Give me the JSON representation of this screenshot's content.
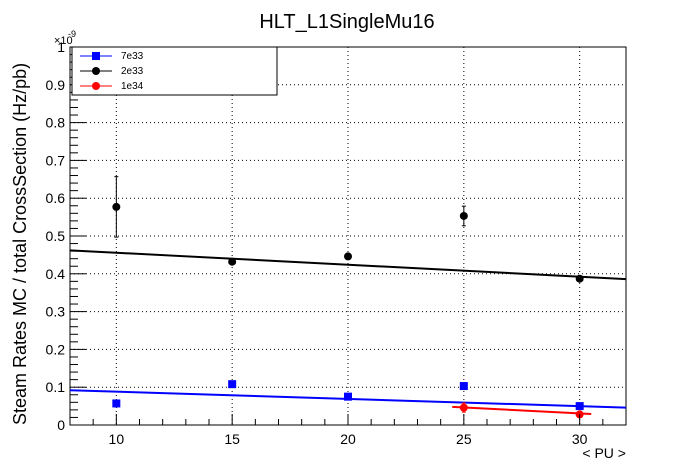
{
  "chart_data": {
    "type": "scatter",
    "title": "HLT_L1SingleMu16",
    "xlabel": "< PU >",
    "ylabel": "Steam Rates MC / total CrossSection (Hz/pb)",
    "y_exponent_label": "×10",
    "y_exponent_power": "-9",
    "xlim": [
      8,
      32
    ],
    "ylim": [
      0,
      1
    ],
    "grid": true,
    "legend_position": "top-left",
    "x_ticks": [
      10,
      15,
      20,
      25,
      30
    ],
    "y_ticks": [
      0,
      0.1,
      0.2,
      0.3,
      0.4,
      0.5,
      0.6,
      0.7,
      0.8,
      0.9,
      1
    ],
    "x_tick_labels": [
      "10",
      "15",
      "20",
      "25",
      "30"
    ],
    "y_tick_labels": [
      "0",
      "0.1",
      "0.2",
      "0.3",
      "0.4",
      "0.5",
      "0.6",
      "0.7",
      "0.8",
      "0.9",
      "1"
    ],
    "series": [
      {
        "name": "7e33",
        "color": "#0000ff",
        "marker": "square",
        "x": [
          10,
          15,
          20,
          25,
          30
        ],
        "y": [
          0.057,
          0.108,
          0.075,
          0.103,
          0.05
        ],
        "yerr": [
          0.005,
          0.005,
          0.005,
          0.007,
          0.005
        ],
        "fit": {
          "x": [
            8,
            32
          ],
          "y": [
            0.092,
            0.046
          ]
        }
      },
      {
        "name": "2e33",
        "color": "#000000",
        "marker": "circle",
        "x": [
          10,
          15,
          20,
          25,
          30
        ],
        "y": [
          0.577,
          0.432,
          0.446,
          0.553,
          0.387
        ],
        "yerr": [
          0.08,
          0.006,
          0.006,
          0.026,
          0.006
        ],
        "fit": {
          "x": [
            8,
            32
          ],
          "y": [
            0.462,
            0.386
          ]
        }
      },
      {
        "name": "1e34",
        "color": "#ff0000",
        "marker": "circle",
        "x": [
          25,
          30
        ],
        "y": [
          0.046,
          0.028
        ],
        "yerr": [
          0.012,
          0.008
        ],
        "fit": {
          "x": [
            24.5,
            30.5
          ],
          "y": [
            0.048,
            0.029
          ]
        }
      }
    ]
  }
}
